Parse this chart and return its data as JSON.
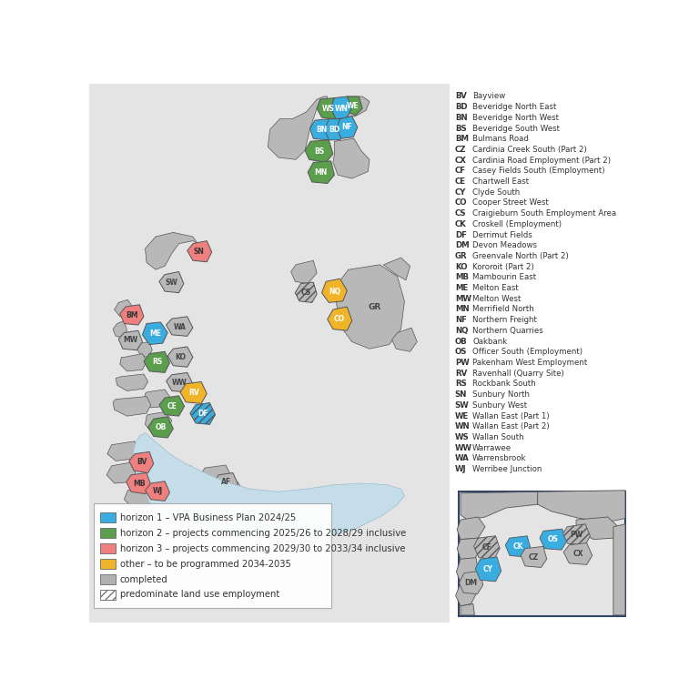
{
  "background_color": "#f0f0f0",
  "map_bg": "#e4e4e4",
  "water_color": "#c5dde8",
  "legend_items": [
    {
      "color": "#3aade0",
      "label": "horizon 1 – VPA Business Plan 2024/25"
    },
    {
      "color": "#5a9e4e",
      "label": "horizon 2 – projects commencing 2025/26 to 2028/29 inclusive"
    },
    {
      "color": "#f08080",
      "label": "horizon 3 – projects commencing 2029/30 to 2033/34 inclusive"
    },
    {
      "color": "#f0b429",
      "label": "other – to be programmed 2034-2035"
    },
    {
      "color": "#b0b0b0",
      "label": "completed"
    },
    {
      "color": "hatch",
      "label": "predominate land use employment"
    }
  ],
  "abbreviations": [
    [
      "BV",
      "Bayview"
    ],
    [
      "BD",
      "Beveridge North East"
    ],
    [
      "BN",
      "Beveridge North West"
    ],
    [
      "BS",
      "Beveridge South West"
    ],
    [
      "BM",
      "Bulmans Road"
    ],
    [
      "CZ",
      "Cardinia Creek South (Part 2)"
    ],
    [
      "CX",
      "Cardinia Road Employment (Part 2)"
    ],
    [
      "CF",
      "Casey Fields South (Employment)"
    ],
    [
      "CE",
      "Chartwell East"
    ],
    [
      "CY",
      "Clyde South"
    ],
    [
      "CO",
      "Cooper Street West"
    ],
    [
      "CS",
      "Craigieburn South Employment Area"
    ],
    [
      "CK",
      "Croskell (Employment)"
    ],
    [
      "DF",
      "Derrimut Fields"
    ],
    [
      "DM",
      "Devon Meadows"
    ],
    [
      "GR",
      "Greenvale North (Part 2)"
    ],
    [
      "KO",
      "Kororoit (Part 2)"
    ],
    [
      "MB",
      "Mambourin East"
    ],
    [
      "ME",
      "Melton East"
    ],
    [
      "MW",
      "Melton West"
    ],
    [
      "MN",
      "Merrifield North"
    ],
    [
      "NF",
      "Northern Freight"
    ],
    [
      "NQ",
      "Northern Quarries"
    ],
    [
      "OB",
      "Oakbank"
    ],
    [
      "OS",
      "Officer South (Employment)"
    ],
    [
      "PW",
      "Pakenham West Employment"
    ],
    [
      "RV",
      "Ravenhall (Quarry Site)"
    ],
    [
      "RS",
      "Rockbank South"
    ],
    [
      "SN",
      "Sunbury North"
    ],
    [
      "SW",
      "Sunbury West"
    ],
    [
      "WE",
      "Wallan East (Part 1)"
    ],
    [
      "WN",
      "Wallan East (Part 2)"
    ],
    [
      "WS",
      "Wallan South"
    ],
    [
      "WW",
      "Warrawee"
    ],
    [
      "WA",
      "Warrensbrook"
    ],
    [
      "WJ",
      "Werribee Junction"
    ]
  ],
  "gray": "#b8b8b8",
  "blue": "#3aade0",
  "green": "#5a9e4e",
  "salmon": "#f08080",
  "orange": "#f0b429",
  "outline": "#555555"
}
